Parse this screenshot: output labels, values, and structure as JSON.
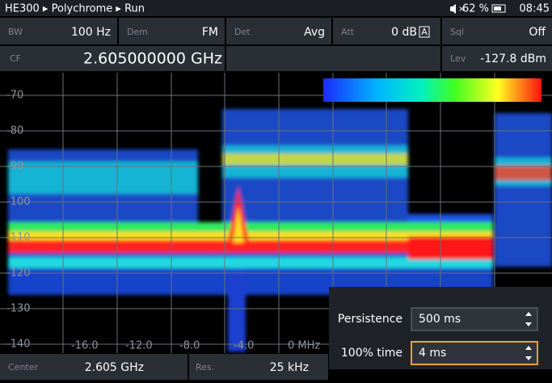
{
  "status": {
    "path": "HE300 ▸ Polychrome ▸ Run",
    "battery": "62 %",
    "time": "08:45"
  },
  "params": [
    {
      "label": "BW",
      "value": "100 Hz"
    },
    {
      "label": "Dem",
      "value": "FM"
    },
    {
      "label": "Det",
      "value": "Avg"
    },
    {
      "label": "Att",
      "value": "0 dB"
    },
    {
      "label": "Sql",
      "value": "Off"
    }
  ],
  "att_badge": "A",
  "cf": {
    "label": "CF",
    "value": "2.605000000 GHz"
  },
  "lev": {
    "label": "Lev",
    "value": "-127.8 dBm"
  },
  "plot": {
    "y_labels": [
      "-70",
      "-80",
      "-90",
      "-100",
      "-110",
      "-120",
      "-130",
      "-140"
    ],
    "x_labels": [
      "-16.0",
      "-12.0",
      "-8.0",
      "-4.0",
      "0 MHz"
    ]
  },
  "persistence": {
    "label": "Persistence",
    "value": "500 ms"
  },
  "time_100": {
    "label": "100% time",
    "value": "4 ms"
  },
  "footer": {
    "center_label": "Center",
    "center_value": "2.605 GHz",
    "res_label": "Res.",
    "res_value": "25 kHz"
  }
}
